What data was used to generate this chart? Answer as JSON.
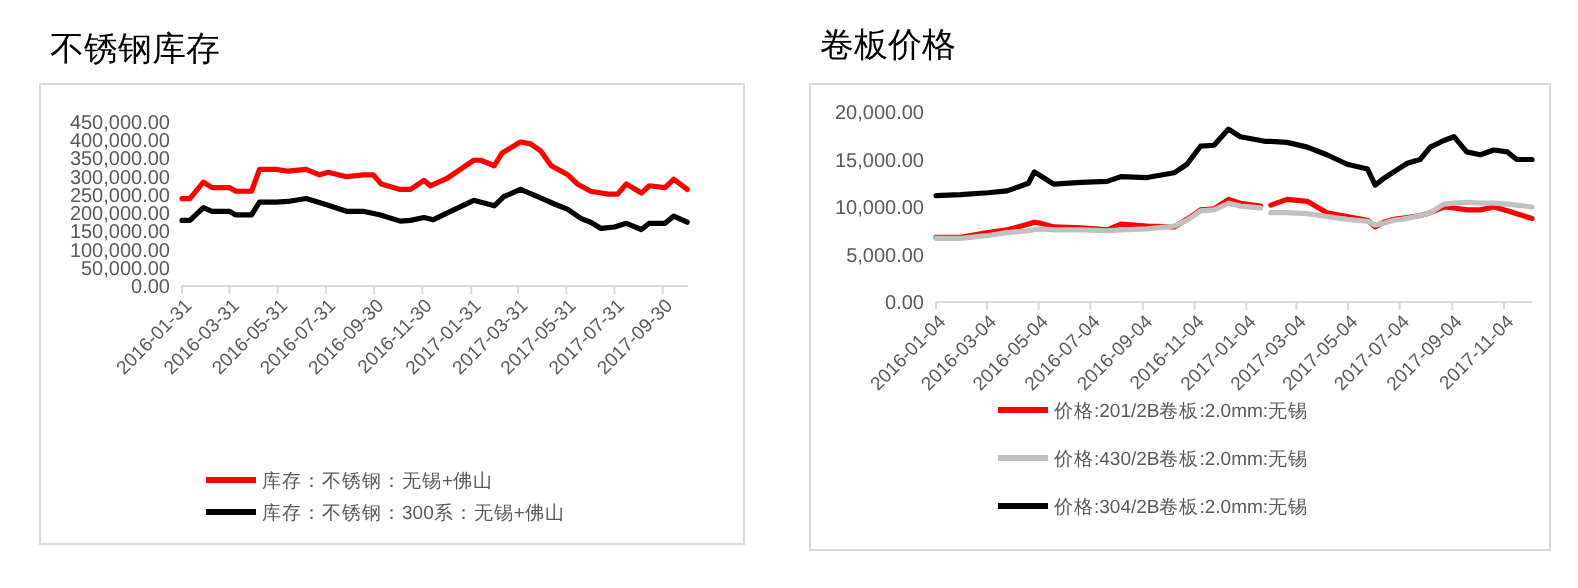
{
  "chart_data": [
    {
      "type": "line",
      "title": "不锈钢库存",
      "legend": "bottom",
      "xlim": [
        "2016-01-31",
        "2017-11-01"
      ],
      "xticks": [
        "2016-01-31",
        "2016-03-31",
        "2016-05-31",
        "2016-07-31",
        "2016-09-30",
        "2016-11-30",
        "2017-01-31",
        "2017-03-31",
        "2017-05-31",
        "2017-07-31",
        "2017-09-30"
      ],
      "ylim": [
        0,
        450000
      ],
      "yticks": [
        {
          "value": 0,
          "label": "0.00"
        },
        {
          "value": 50000,
          "label": "50,000.00"
        },
        {
          "value": 100000,
          "label": "100,000.00"
        },
        {
          "value": 150000,
          "label": "150,000.00"
        },
        {
          "value": 200000,
          "label": "200,000.00"
        },
        {
          "value": 250000,
          "label": "250,000.00"
        },
        {
          "value": 300000,
          "label": "300,000.00"
        },
        {
          "value": 350000,
          "label": "350,000.00"
        },
        {
          "value": 400000,
          "label": "400,000.00"
        },
        {
          "value": 450000,
          "label": "450,000.00"
        }
      ],
      "series": [
        {
          "name": "库存：不锈钢：无锡+佛山",
          "color": "#ff0000",
          "x": [
            "2016-01-31",
            "2016-02-10",
            "2016-02-27",
            "2016-03-09",
            "2016-03-31",
            "2016-04-08",
            "2016-04-28",
            "2016-05-08",
            "2016-05-29",
            "2016-06-13",
            "2016-07-06",
            "2016-07-23",
            "2016-08-03",
            "2016-08-26",
            "2016-09-16",
            "2016-09-29",
            "2016-10-09",
            "2016-11-02",
            "2016-11-15",
            "2016-12-02",
            "2016-12-10",
            "2016-12-31",
            "2017-01-17",
            "2017-02-03",
            "2017-02-12",
            "2017-03-01",
            "2017-03-11",
            "2017-04-03",
            "2017-04-16",
            "2017-04-29",
            "2017-05-12",
            "2017-06-02",
            "2017-06-14",
            "2017-07-01",
            "2017-07-23",
            "2017-08-04",
            "2017-08-15",
            "2017-09-03",
            "2017-09-13",
            "2017-10-03",
            "2017-10-14",
            "2017-10-31"
          ],
          "values": [
            240000,
            240000,
            285000,
            270000,
            270000,
            260000,
            260000,
            320000,
            320000,
            315000,
            320000,
            305000,
            312000,
            300000,
            305000,
            305000,
            280000,
            265000,
            265000,
            290000,
            275000,
            295000,
            320000,
            345000,
            345000,
            330000,
            365000,
            395000,
            390000,
            370000,
            330000,
            305000,
            280000,
            260000,
            252000,
            252000,
            280000,
            255000,
            275000,
            270000,
            293000,
            265000
          ]
        },
        {
          "name": "库存：不锈钢：300系：无锡+佛山",
          "color": "#000000",
          "x": [
            "2016-01-31",
            "2016-02-10",
            "2016-02-27",
            "2016-03-09",
            "2016-03-31",
            "2016-04-08",
            "2016-04-28",
            "2016-05-08",
            "2016-05-29",
            "2016-06-13",
            "2016-07-06",
            "2016-08-02",
            "2016-08-26",
            "2016-09-16",
            "2016-10-08",
            "2016-11-02",
            "2016-11-15",
            "2016-12-02",
            "2016-12-14",
            "2016-12-31",
            "2017-02-03",
            "2017-03-01",
            "2017-03-13",
            "2017-04-03",
            "2017-04-25",
            "2017-05-16",
            "2017-06-02",
            "2017-06-19",
            "2017-07-01",
            "2017-07-14",
            "2017-07-31",
            "2017-08-15",
            "2017-09-03",
            "2017-09-13",
            "2017-10-03",
            "2017-10-14",
            "2017-10-31"
          ],
          "values": [
            180000,
            180000,
            215000,
            205000,
            205000,
            195000,
            195000,
            230000,
            230000,
            232000,
            240000,
            222000,
            205000,
            205000,
            195000,
            178000,
            180000,
            188000,
            182000,
            200000,
            235000,
            220000,
            245000,
            265000,
            245000,
            225000,
            210000,
            185000,
            175000,
            158000,
            162000,
            172000,
            155000,
            172000,
            172000,
            192000,
            175000
          ]
        }
      ]
    },
    {
      "type": "line",
      "title": "卷板价格",
      "legend": "bottom",
      "x": [
        "2016-01-04",
        "2016-02-02",
        "2016-03-05",
        "2016-03-28",
        "2016-04-22",
        "2016-04-29",
        "2016-05-06",
        "2016-05-22",
        "2016-06-23",
        "2016-07-24",
        "2016-08-09",
        "2016-09-09",
        "2016-10-11",
        "2016-10-26",
        "2016-11-11",
        "2016-11-27",
        "2016-12-14",
        "2016-12-28",
        "2017-01-21",
        "2017-01-27",
        "2017-02-02",
        "2017-02-21",
        "2017-03-17",
        "2017-04-09",
        "2017-05-03",
        "2017-05-27",
        "2017-06-05",
        "2017-06-15",
        "2017-06-27",
        "2017-07-13",
        "2017-07-28",
        "2017-08-09",
        "2017-08-25",
        "2017-09-06",
        "2017-09-21",
        "2017-10-07",
        "2017-10-23",
        "2017-11-08",
        "2017-11-19",
        "2017-12-07"
      ],
      "xlim": [
        "2016-01-04",
        "2017-12-07"
      ],
      "xticks": [
        "2016-01-04",
        "2016-03-04",
        "2016-05-04",
        "2016-07-04",
        "2016-09-04",
        "2016-11-04",
        "2017-01-04",
        "2017-03-04",
        "2017-05-04",
        "2017-07-04",
        "2017-09-04",
        "2017-11-04"
      ],
      "ylim": [
        0,
        20000
      ],
      "yticks": [
        {
          "value": 0,
          "label": "0.00"
        },
        {
          "value": 5000,
          "label": "5,000.00"
        },
        {
          "value": 10000,
          "label": "10,000.00"
        },
        {
          "value": 15000,
          "label": "15,000.00"
        },
        {
          "value": 20000,
          "label": "20,000.00"
        }
      ],
      "series": [
        {
          "name": "价格:201/2B卷板:2.0mm:无锡",
          "color": "#ff0000",
          "values": [
            6800,
            6800,
            7300,
            7600,
            8200,
            8400,
            8300,
            7900,
            7800,
            7600,
            8200,
            8000,
            7900,
            8700,
            9700,
            9800,
            10800,
            10400,
            10100,
            null,
            10200,
            10800,
            10600,
            9400,
            9000,
            8600,
            7900,
            8400,
            8700,
            8900,
            9100,
            9400,
            10000,
            9900,
            9700,
            9700,
            10000,
            9600,
            9300,
            8800
          ]
        },
        {
          "name": "价格:430/2B卷板:2.0mm:无锡",
          "color": "#c0c0c0",
          "values": [
            6700,
            6700,
            7000,
            7300,
            7500,
            7600,
            7700,
            7600,
            7600,
            7500,
            7600,
            7700,
            8000,
            8600,
            9600,
            9700,
            10400,
            10100,
            9900,
            null,
            9400,
            9400,
            9300,
            9000,
            8700,
            8500,
            8100,
            8300,
            8600,
            8800,
            9100,
            9400,
            10300,
            10400,
            10500,
            10400,
            10400,
            10300,
            10200,
            10000
          ]
        },
        {
          "name": "价格:304/2B卷板:2.0mm:无锡",
          "color": "#000000",
          "values": [
            11200,
            11300,
            11500,
            11700,
            12500,
            13700,
            13300,
            12400,
            12600,
            12700,
            13200,
            13100,
            13600,
            14500,
            16400,
            16500,
            18200,
            17400,
            17000,
            16900,
            16900,
            16800,
            16300,
            15500,
            14500,
            14000,
            12300,
            13000,
            13700,
            14600,
            15000,
            16300,
            17000,
            17400,
            15800,
            15500,
            16000,
            15800,
            15000,
            15000
          ]
        }
      ]
    }
  ]
}
